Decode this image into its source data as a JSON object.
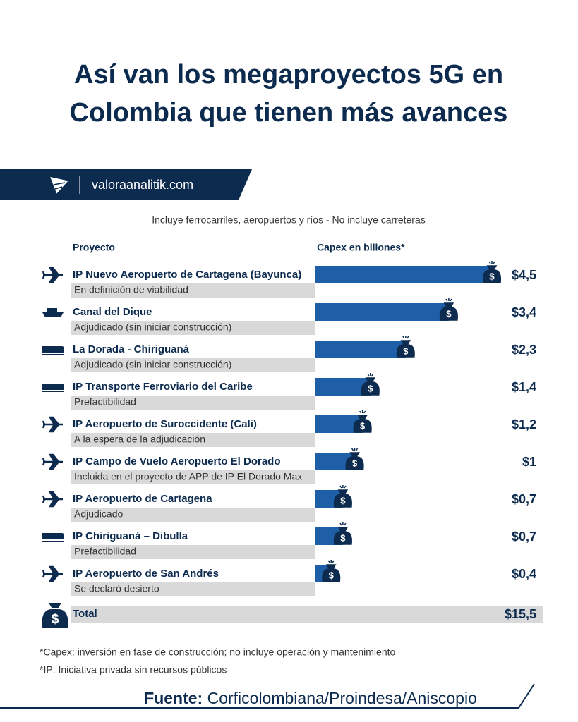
{
  "chart_data": {
    "type": "bar",
    "title_lines": [
      "Así van los megaproyectos 5G en",
      "Colombia que tienen más avances"
    ],
    "brand": "valoraanalitik.com",
    "subtitle": "Incluye ferrocarriles, aeropuertos y ríos - No incluye carreteras",
    "category_header": "Proyecto",
    "value_header": "Capex en billones*",
    "categories": [
      "IP Nuevo Aeropuerto de Cartagena (Bayunca)",
      "Canal del Dique",
      "La Dorada - Chiriguaná",
      "IP Transporte Ferroviario del Caribe",
      "IP Aeropuerto de Suroccidente (Cali)",
      "IP Campo de Vuelo Aeropuerto El Dorado",
      "IP Aeropuerto de Cartagena",
      "IP Chiriguaná – Dibulla",
      "IP Aeropuerto de San Andrés"
    ],
    "statuses": [
      "En definición de viabilidad",
      "Adjudicado (sin iniciar construcción)",
      "Adjudicado (sin iniciar construcción)",
      "Prefactibilidad",
      "A la espera de la adjudicación",
      "Incluida en el proyecto de APP de IP El Dorado Max",
      "Adjudicado",
      "Prefactibilidad",
      "Se declaró desierto"
    ],
    "values": [
      4.5,
      3.4,
      2.3,
      1.4,
      1.2,
      1,
      0.7,
      0.7,
      0.4
    ],
    "value_labels": [
      "$4,5",
      "$3,4",
      "$2,3",
      "$1,4",
      "$1,2",
      "$1",
      "$0,7",
      "$0,7",
      "$0,4"
    ],
    "color": "#1f5fa8",
    "total": {
      "label": "Total",
      "value": 15.5,
      "value_label": "$15,5"
    },
    "footnotes": [
      "*Capex: inversión en fase de construcción; no incluye operación y mantenimiento",
      "*IP: Iniciativa privada sin recursos públicos"
    ],
    "source_label": "Fuente:",
    "source": "Corficolombiana/Proindesa/Aniscopio"
  }
}
